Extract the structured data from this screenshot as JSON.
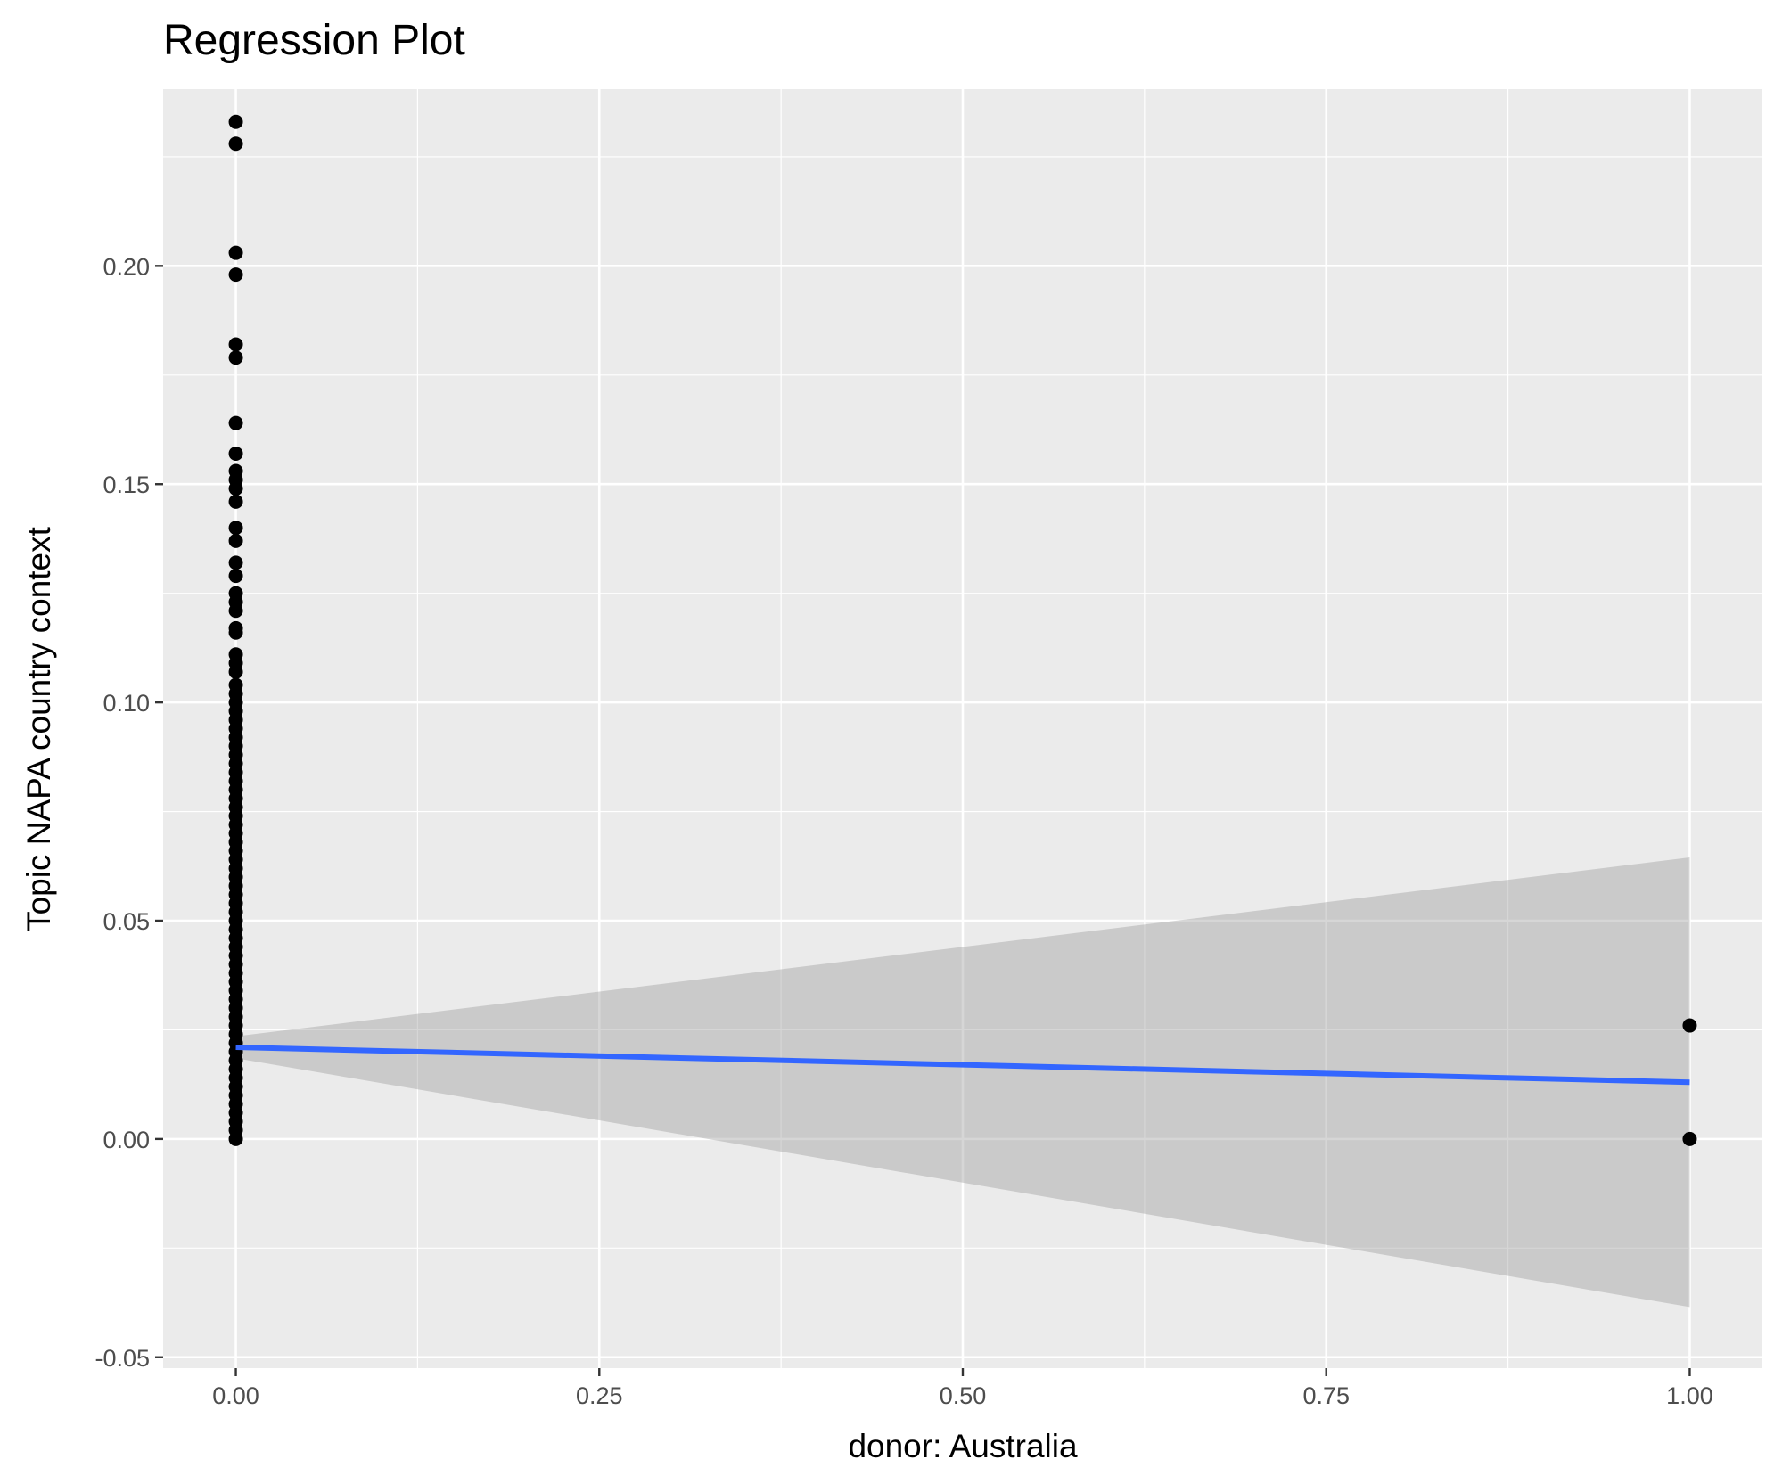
{
  "chart_data": {
    "type": "scatter",
    "title": "Regression Plot",
    "xlabel": "donor: Australia",
    "ylabel": "Topic NAPA country context",
    "xlim": [
      -0.05,
      1.05
    ],
    "ylim": [
      -0.0525,
      0.2405
    ],
    "x_ticks": [
      0.0,
      0.25,
      0.5,
      0.75,
      1.0
    ],
    "x_tick_labels": [
      "0.00",
      "0.25",
      "0.50",
      "0.75",
      "1.00"
    ],
    "y_ticks": [
      -0.05,
      0.0,
      0.05,
      0.1,
      0.15,
      0.2
    ],
    "y_tick_labels": [
      "-0.05",
      "0.00",
      "0.05",
      "0.10",
      "0.15",
      "0.20"
    ],
    "grid": true,
    "panel_background": "#ebebeb",
    "colors": {
      "points": "#000000",
      "fit_line": "#3366ff",
      "ribbon": "#999999"
    },
    "points": {
      "x0_values": [
        0.233,
        0.228,
        0.203,
        0.198,
        0.182,
        0.179,
        0.164,
        0.157,
        0.153,
        0.151,
        0.149,
        0.146,
        0.14,
        0.137,
        0.132,
        0.129,
        0.125,
        0.123,
        0.121,
        0.117,
        0.116,
        0.111,
        0.109,
        0.107,
        0.104,
        0.102,
        0.1,
        0.098,
        0.096,
        0.094,
        0.092,
        0.09,
        0.088,
        0.086,
        0.084,
        0.082,
        0.08,
        0.078,
        0.076,
        0.074,
        0.072,
        0.07,
        0.068,
        0.066,
        0.064,
        0.062,
        0.06,
        0.058,
        0.056,
        0.054,
        0.052,
        0.05,
        0.048,
        0.046,
        0.044,
        0.042,
        0.04,
        0.038,
        0.036,
        0.034,
        0.032,
        0.03,
        0.028,
        0.026,
        0.024,
        0.022,
        0.02,
        0.018,
        0.016,
        0.014,
        0.012,
        0.01,
        0.008,
        0.006,
        0.004,
        0.002,
        0.0
      ],
      "x1_values": [
        0.026,
        0.0
      ]
    },
    "fit": {
      "x": [
        0,
        1
      ],
      "y": [
        0.021,
        0.013
      ]
    },
    "ribbon": {
      "x": [
        0,
        1
      ],
      "lower": [
        0.0185,
        -0.0385
      ],
      "upper": [
        0.0235,
        0.0645
      ]
    }
  }
}
